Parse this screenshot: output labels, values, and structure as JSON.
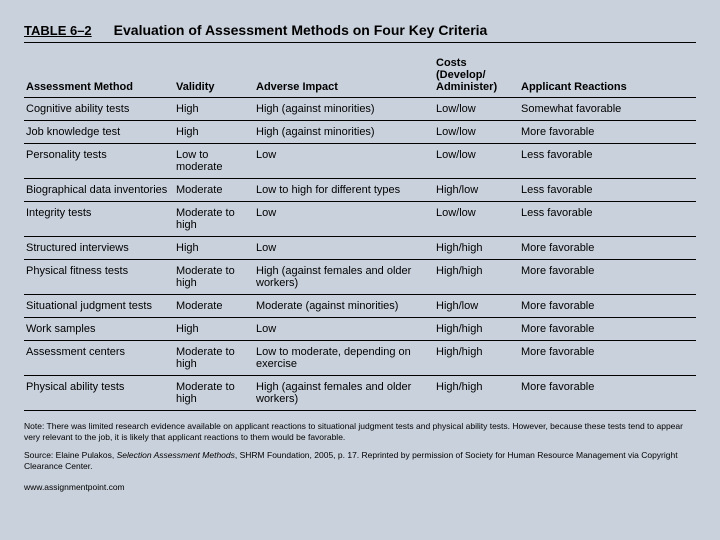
{
  "header": {
    "table_number": "TABLE 6–2",
    "title": "Evaluation of Assessment Methods on Four Key Criteria"
  },
  "columns": {
    "method": "Assessment Method",
    "validity": "Validity",
    "adverse": "Adverse Impact",
    "costs": "Costs (Develop/ Administer)",
    "reactions": "Applicant Reactions"
  },
  "rows": [
    {
      "method": "Cognitive ability tests",
      "validity": "High",
      "adverse": "High (against minorities)",
      "costs": "Low/low",
      "reactions": "Somewhat favorable"
    },
    {
      "method": "Job knowledge test",
      "validity": "High",
      "adverse": "High (against minorities)",
      "costs": "Low/low",
      "reactions": "More favorable"
    },
    {
      "method": "Personality tests",
      "validity": "Low to moderate",
      "adverse": "Low",
      "costs": "Low/low",
      "reactions": "Less favorable"
    },
    {
      "method": "Biographical data inventories",
      "validity": "Moderate",
      "adverse": "Low to high for different types",
      "costs": "High/low",
      "reactions": "Less favorable"
    },
    {
      "method": "Integrity tests",
      "validity": "Moderate to high",
      "adverse": "Low",
      "costs": "Low/low",
      "reactions": "Less favorable"
    },
    {
      "method": "Structured interviews",
      "validity": "High",
      "adverse": "Low",
      "costs": "High/high",
      "reactions": "More favorable"
    },
    {
      "method": "Physical fitness tests",
      "validity": "Moderate to high",
      "adverse": "High (against females and older workers)",
      "costs": "High/high",
      "reactions": "More favorable"
    },
    {
      "method": "Situational judgment tests",
      "validity": "Moderate",
      "adverse": "Moderate (against minorities)",
      "costs": "High/low",
      "reactions": "More favorable"
    },
    {
      "method": "Work samples",
      "validity": "High",
      "adverse": "Low",
      "costs": "High/high",
      "reactions": "More favorable"
    },
    {
      "method": "Assessment centers",
      "validity": "Moderate to high",
      "adverse": "Low to moderate, depending on exercise",
      "costs": "High/high",
      "reactions": "More favorable"
    },
    {
      "method": "Physical ability tests",
      "validity": "Moderate to high",
      "adverse": "High (against females and older workers)",
      "costs": "High/high",
      "reactions": "More favorable"
    }
  ],
  "note": "Note: There was limited research evidence available on applicant reactions to situational judgment tests and physical ability tests. However, because these tests tend to appear very relevant to the job, it is likely that applicant reactions to them would be favorable.",
  "source_prefix": "Source: ",
  "source_author": "Elaine Pulakos, ",
  "source_title": "Selection Assessment Methods",
  "source_rest": ", SHRM Foundation, 2005, p. 17. Reprinted by permission of Society for Human Resource Management via Copyright Clearance Center.",
  "url": "www.assignmentpoint.com"
}
